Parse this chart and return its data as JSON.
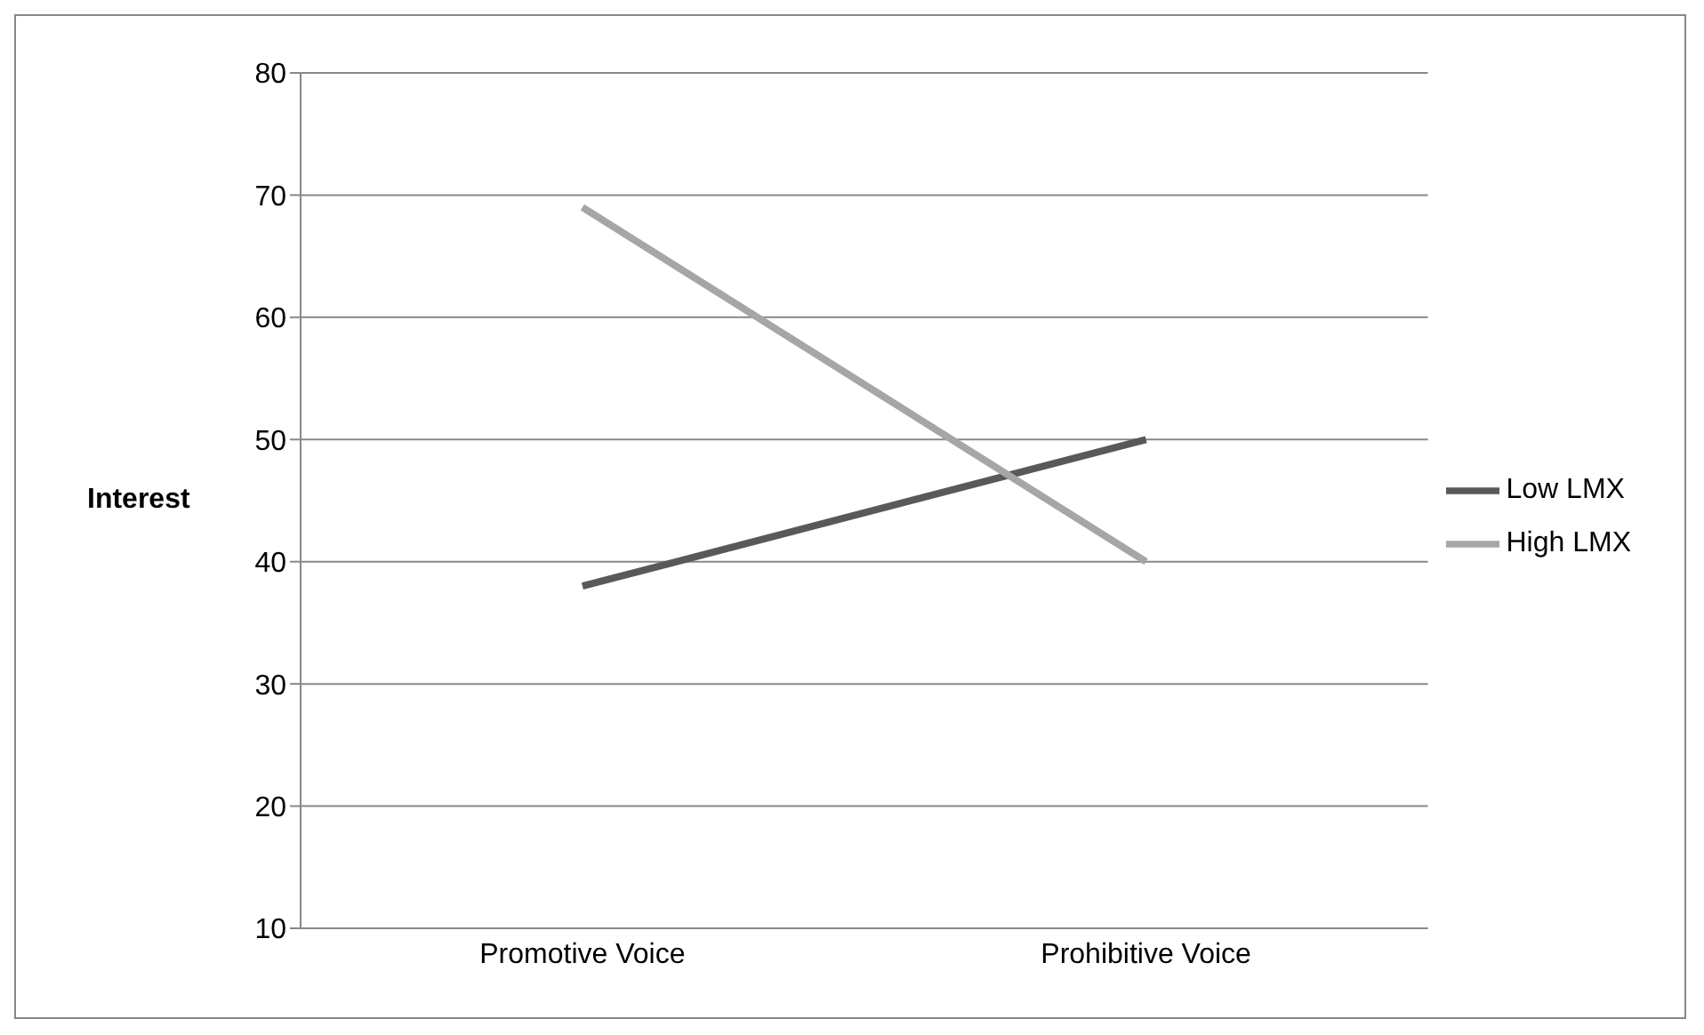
{
  "chart_data": {
    "type": "line",
    "ylabel": "Interest",
    "categories": [
      "Promotive Voice",
      "Prohibitive Voice"
    ],
    "series": [
      {
        "name": "Low LMX",
        "color": "#595959",
        "values": [
          38,
          50
        ]
      },
      {
        "name": "High LMX",
        "color": "#a6a6a6",
        "values": [
          69,
          40
        ]
      }
    ],
    "ylim": [
      10,
      80
    ],
    "yticks": [
      10,
      20,
      30,
      40,
      50,
      60,
      70,
      80
    ],
    "grid": "y",
    "legend": "right",
    "marker": "none",
    "line_style": "solid"
  }
}
